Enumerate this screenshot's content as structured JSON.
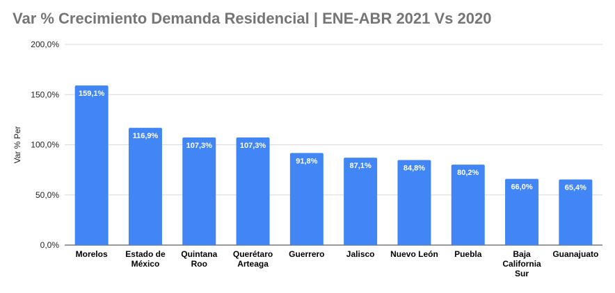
{
  "chart_data": {
    "type": "bar",
    "title": "Var % Crecimiento Demanda Residencial | ENE-ABR 2021 Vs 2020",
    "ylabel": "Var % Per",
    "xlabel": "",
    "categories": [
      [
        "Morelos"
      ],
      [
        "Estado de",
        "México"
      ],
      [
        "Quintana",
        "Roo"
      ],
      [
        "Querétaro",
        "Arteaga"
      ],
      [
        "Guerrero"
      ],
      [
        "Jalisco"
      ],
      [
        "Nuevo León"
      ],
      [
        "Puebla"
      ],
      [
        "Baja",
        "California",
        "Sur"
      ],
      [
        "Guanajuato"
      ]
    ],
    "values": [
      159.1,
      116.9,
      107.3,
      107.3,
      91.8,
      87.1,
      84.8,
      80.2,
      66.0,
      65.4
    ],
    "value_labels": [
      "159,1%",
      "116,9%",
      "107,3%",
      "107,3%",
      "91,8%",
      "87,1%",
      "84,8%",
      "80,2%",
      "66,0%",
      "65,4%"
    ],
    "ylim": [
      0,
      200
    ],
    "yticks": [
      0,
      50,
      100,
      150,
      200
    ],
    "ytick_labels": [
      "0,0%",
      "50,0%",
      "100,0%",
      "150,0%",
      "200,0%"
    ],
    "grid": true,
    "legend": "none",
    "colors": {
      "bar": "#4285f4",
      "grid": "#d9d9d9",
      "title": "#757575",
      "label": "#000000",
      "value_label": "#ffffff"
    }
  }
}
